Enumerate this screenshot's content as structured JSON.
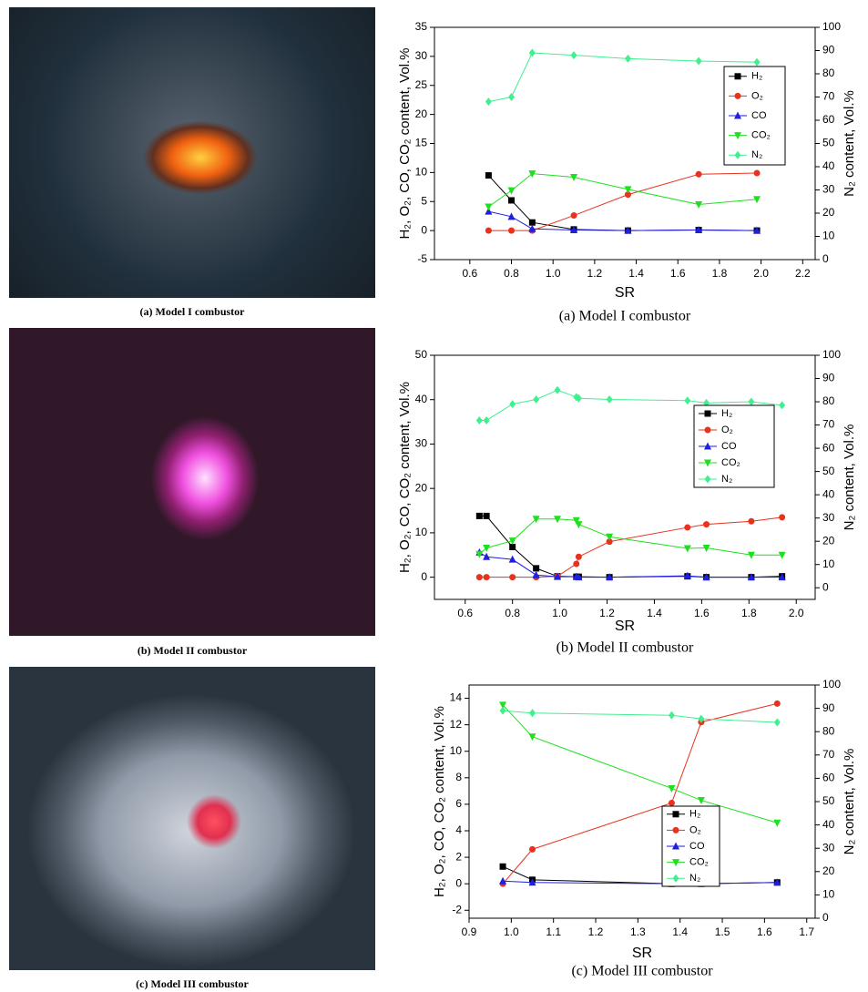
{
  "photos": [
    {
      "caption": "(a) Model I combustor"
    },
    {
      "caption": "(b) Model II combustor"
    },
    {
      "caption": "(c) Model III combustor"
    }
  ],
  "chart_data": [
    {
      "type": "line",
      "caption": "(a) Model I combustor",
      "xlabel": "SR",
      "ylabel": "H₂, O₂, CO, CO₂ content, Vol.%",
      "y2label": "N₂ content, Vol.%",
      "x": [
        0.69,
        0.8,
        0.9,
        1.1,
        1.36,
        1.7,
        1.98
      ],
      "xlim": [
        0.43,
        2.26
      ],
      "xticks": [
        0.6,
        0.8,
        {
          "value": 1,
          "label": "1.0"
        },
        1.2,
        1.4,
        1.6,
        1.8,
        {
          "value": 2,
          "label": "2.0"
        },
        2.2
      ],
      "ylim": [
        -5,
        35
      ],
      "yticks": [
        -5,
        0,
        5,
        10,
        15,
        20,
        25,
        30,
        35
      ],
      "y2lim": [
        0,
        100
      ],
      "y2ticks": [
        0,
        10,
        20,
        30,
        40,
        50,
        60,
        70,
        80,
        90,
        100
      ],
      "series": [
        {
          "name": "H₂",
          "color": "#000000",
          "marker": "square",
          "values": [
            9.5,
            5.2,
            1.4,
            0.2,
            0,
            0.1,
            0
          ]
        },
        {
          "name": "O₂",
          "color": "#e8321e",
          "marker": "circle",
          "values": [
            0,
            0,
            0,
            2.6,
            6.2,
            9.7,
            9.9
          ]
        },
        {
          "name": "CO",
          "color": "#1f1fe0",
          "marker": "triangle-up",
          "values": [
            3.3,
            2.4,
            0.3,
            0.1,
            0,
            0.1,
            0
          ]
        },
        {
          "name": "CO₂",
          "color": "#1ee01e",
          "marker": "triangle-down",
          "values": [
            4.1,
            6.9,
            9.8,
            9.2,
            7.1,
            4.5,
            5.4
          ]
        },
        {
          "name": "N₂",
          "color": "#40f090",
          "marker": "diamond",
          "axis": "y2",
          "values": [
            68,
            70,
            89,
            88,
            86.5,
            85.5,
            85
          ]
        }
      ]
    },
    {
      "type": "line",
      "caption": "(b) Model II combustor",
      "xlabel": "SR",
      "ylabel": "H₂, O₂, CO, CO₂ content, Vol.%",
      "y2label": "N₂ content, Vol.%",
      "x": [
        0.66,
        0.69,
        0.8,
        0.9,
        0.99,
        1.07,
        1.08,
        1.21,
        1.54,
        1.62,
        1.81,
        1.94
      ],
      "xlim": [
        0.47,
        2.08
      ],
      "xticks": [
        0.6,
        0.8,
        {
          "value": 1,
          "label": "1.0"
        },
        1.2,
        1.4,
        1.6,
        1.8,
        {
          "value": 2,
          "label": "2.0"
        }
      ],
      "ylim": [
        -5,
        50
      ],
      "yticks": [
        0,
        10,
        20,
        30,
        40,
        50
      ],
      "y2lim": [
        -5,
        100
      ],
      "y2ticks": [
        0,
        10,
        20,
        30,
        40,
        50,
        60,
        70,
        80,
        90,
        100
      ],
      "series": [
        {
          "name": "H₂",
          "color": "#000000",
          "marker": "square",
          "values": [
            13.8,
            13.8,
            6.8,
            2.0,
            0.2,
            0.1,
            0.1,
            0,
            0.2,
            0,
            0,
            0.2
          ]
        },
        {
          "name": "O₂",
          "color": "#e8321e",
          "marker": "circle",
          "values": [
            0,
            0,
            0,
            0,
            0.2,
            3.0,
            4.6,
            8.0,
            11.2,
            11.9,
            12.6,
            13.5
          ]
        },
        {
          "name": "CO",
          "color": "#1f1fe0",
          "marker": "triangle-up",
          "values": [
            5.6,
            4.6,
            4.0,
            0.5,
            0.1,
            0.1,
            0,
            0,
            0.3,
            0,
            0,
            0
          ]
        },
        {
          "name": "CO₂",
          "color": "#1ee01e",
          "marker": "triangle-down",
          "values": [
            5.2,
            6.6,
            8.2,
            13.1,
            13.1,
            12.8,
            11.9,
            9.1,
            6.5,
            6.6,
            5.0,
            5.0
          ]
        },
        {
          "name": "N₂",
          "color": "#40f090",
          "marker": "diamond",
          "axis": "y2",
          "values": [
            72,
            72,
            79,
            81,
            85,
            82,
            81.5,
            81,
            80.5,
            79.5,
            80,
            78.5
          ]
        }
      ]
    },
    {
      "type": "line",
      "caption": "(c) Model III combustor",
      "xlabel": "SR",
      "ylabel": "H₂, O₂, CO, CO₂ content, Vol.%",
      "y2label": "N₂ content, Vol.%",
      "x": [
        0.98,
        1.05,
        1.38,
        1.45,
        1.63
      ],
      "xlim": [
        0.9,
        1.72
      ],
      "xticks": [
        0.9,
        {
          "value": 1,
          "label": "1.0"
        },
        1.1,
        1.2,
        1.3,
        1.4,
        1.5,
        1.6,
        1.7
      ],
      "ylim": [
        -2.6,
        15
      ],
      "yticks": [
        -2,
        0,
        2,
        4,
        6,
        8,
        10,
        12,
        14
      ],
      "y2lim": [
        0,
        100
      ],
      "y2ticks": [
        0,
        10,
        20,
        30,
        40,
        50,
        60,
        70,
        80,
        90,
        100
      ],
      "series": [
        {
          "name": "H₂",
          "color": "#000000",
          "marker": "square",
          "values": [
            1.3,
            0.3,
            0,
            0,
            0.1
          ]
        },
        {
          "name": "O₂",
          "color": "#e8321e",
          "marker": "circle",
          "values": [
            0,
            2.6,
            6.1,
            12.2,
            13.6
          ]
        },
        {
          "name": "CO",
          "color": "#1f1fe0",
          "marker": "triangle-up",
          "values": [
            0.2,
            0.1,
            0,
            0,
            0.1
          ]
        },
        {
          "name": "CO₂",
          "color": "#1ee01e",
          "marker": "triangle-down",
          "values": [
            13.5,
            11.1,
            7.2,
            6.3,
            4.6
          ]
        },
        {
          "name": "N₂",
          "color": "#40f090",
          "marker": "diamond",
          "axis": "y2",
          "values": [
            89,
            88,
            87,
            85.5,
            84
          ]
        }
      ]
    }
  ]
}
